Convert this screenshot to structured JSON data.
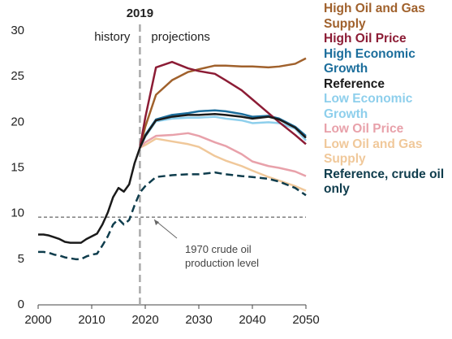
{
  "chart_data": {
    "type": "line",
    "x": [
      2000,
      2001,
      2002,
      2003,
      2004,
      2005,
      2006,
      2007,
      2008,
      2009,
      2010,
      2011,
      2012,
      2013,
      2014,
      2015,
      2016,
      2017,
      2018,
      2019,
      2020,
      2022,
      2025,
      2028,
      2030,
      2033,
      2035,
      2038,
      2040,
      2043,
      2045,
      2048,
      2050
    ],
    "series": [
      {
        "name": "High Oil and Gas Supply",
        "color": "#a0612c",
        "dashed": false,
        "values": [
          null,
          null,
          null,
          null,
          null,
          null,
          null,
          null,
          null,
          null,
          null,
          null,
          null,
          null,
          null,
          null,
          null,
          null,
          null,
          17.2,
          19.5,
          23.0,
          24.6,
          25.5,
          25.8,
          26.2,
          26.2,
          26.1,
          26.1,
          26.0,
          26.1,
          26.4,
          27.0
        ]
      },
      {
        "name": "High Oil Price",
        "color": "#8c1c35",
        "dashed": false,
        "values": [
          null,
          null,
          null,
          null,
          null,
          null,
          null,
          null,
          null,
          null,
          null,
          null,
          null,
          null,
          null,
          null,
          null,
          null,
          null,
          17.2,
          20.5,
          26.0,
          26.6,
          25.9,
          25.6,
          25.3,
          24.6,
          23.5,
          22.5,
          21.0,
          20.0,
          18.6,
          17.6
        ]
      },
      {
        "name": "High Economic Growth",
        "color": "#1c6e9c",
        "dashed": false,
        "values": [
          null,
          null,
          null,
          null,
          null,
          null,
          null,
          null,
          null,
          null,
          null,
          null,
          null,
          null,
          null,
          null,
          null,
          null,
          null,
          17.2,
          18.6,
          20.3,
          20.8,
          21.0,
          21.2,
          21.3,
          21.2,
          20.9,
          20.6,
          20.7,
          20.4,
          19.5,
          18.5
        ]
      },
      {
        "name": "Reference",
        "color": "#1a1a1a",
        "dashed": false,
        "values": [
          7.7,
          7.7,
          7.6,
          7.4,
          7.2,
          6.9,
          6.8,
          6.8,
          6.8,
          7.2,
          7.5,
          7.8,
          8.8,
          10.1,
          11.8,
          12.8,
          12.4,
          13.2,
          15.5,
          17.2,
          18.5,
          20.2,
          20.6,
          20.8,
          20.8,
          20.9,
          20.8,
          20.6,
          20.4,
          20.6,
          20.3,
          19.4,
          18.3
        ]
      },
      {
        "name": "Low Economic Growth",
        "color": "#8ecfec",
        "dashed": false,
        "values": [
          null,
          null,
          null,
          null,
          null,
          null,
          null,
          null,
          null,
          null,
          null,
          null,
          null,
          null,
          null,
          null,
          null,
          null,
          null,
          17.2,
          18.4,
          20.1,
          20.4,
          20.5,
          20.5,
          20.6,
          20.4,
          20.2,
          19.9,
          20.0,
          19.9,
          19.3,
          18.0
        ]
      },
      {
        "name": "Low Oil Price",
        "color": "#e8a1aa",
        "dashed": false,
        "values": [
          null,
          null,
          null,
          null,
          null,
          null,
          null,
          null,
          null,
          null,
          null,
          null,
          null,
          null,
          null,
          null,
          null,
          null,
          null,
          17.2,
          17.8,
          18.5,
          18.6,
          18.8,
          18.5,
          17.8,
          17.4,
          16.5,
          15.7,
          15.2,
          15.0,
          14.6,
          14.1
        ]
      },
      {
        "name": "Low Oil and Gas Supply",
        "color": "#f0c89a",
        "dashed": false,
        "values": [
          null,
          null,
          null,
          null,
          null,
          null,
          null,
          null,
          null,
          null,
          null,
          null,
          null,
          null,
          null,
          null,
          null,
          null,
          null,
          17.2,
          17.5,
          18.2,
          17.9,
          17.6,
          17.3,
          16.3,
          15.8,
          15.2,
          14.7,
          14.0,
          13.6,
          13.0,
          12.5
        ]
      },
      {
        "name": "Reference, crude oil only",
        "color": "#0e3c4c",
        "dashed": true,
        "values": [
          5.8,
          5.8,
          5.7,
          5.5,
          5.4,
          5.2,
          5.1,
          5.0,
          5.0,
          5.3,
          5.5,
          5.6,
          6.5,
          7.5,
          8.8,
          9.4,
          8.8,
          9.3,
          10.9,
          12.3,
          13.0,
          14.0,
          14.2,
          14.3,
          14.3,
          14.5,
          14.3,
          14.1,
          14.0,
          13.8,
          13.5,
          12.8,
          12.0
        ]
      }
    ],
    "xlim": [
      2000,
      2050
    ],
    "ylim": [
      0,
      30
    ],
    "xticks": [
      2000,
      2010,
      2020,
      2030,
      2040,
      2050
    ],
    "yticks": [
      0,
      5,
      10,
      15,
      20,
      25,
      30
    ],
    "grid": false,
    "divider": {
      "x": 2019,
      "label": "2019",
      "left_label": "history",
      "right_label": "projections"
    },
    "reference_line": {
      "value": 9.6,
      "label": "1970 crude oil production level"
    }
  }
}
